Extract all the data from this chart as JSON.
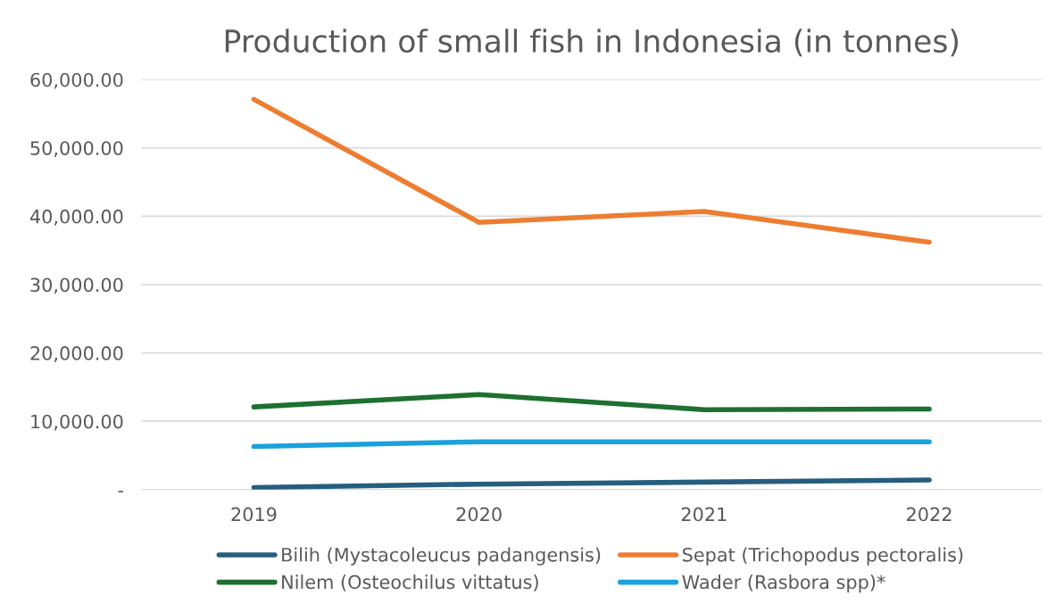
{
  "chart_data": {
    "type": "line",
    "title": "Production of small fish in Indonesia (in tonnes)",
    "categories": [
      "2019",
      "2020",
      "2021",
      "2022"
    ],
    "series": [
      {
        "name": "Bilih (Mystacoleucus padangensis)",
        "color": "#255e7e",
        "values": [
          300,
          800,
          1100,
          1400
        ]
      },
      {
        "name": "Sepat (Trichopodus pectoralis)",
        "color": "#ed7d31",
        "values": [
          57100,
          39100,
          40700,
          36200
        ]
      },
      {
        "name": "Nilem (Osteochilus vittatus)",
        "color": "#1e7030",
        "values": [
          12100,
          13900,
          11700,
          11800
        ]
      },
      {
        "name": "Wader (Rasbora spp)*",
        "color": "#1ba1dc",
        "values": [
          6300,
          7000,
          7000,
          7000
        ]
      }
    ],
    "ylim": [
      0,
      60000
    ],
    "yticks": [
      {
        "value": 0,
        "label": "-"
      },
      {
        "value": 10000,
        "label": "10,000.00"
      },
      {
        "value": 20000,
        "label": "20,000.00"
      },
      {
        "value": 30000,
        "label": "30,000.00"
      },
      {
        "value": 40000,
        "label": "40,000.00"
      },
      {
        "value": 50000,
        "label": "50,000.00"
      },
      {
        "value": 60000,
        "label": "60,000.00"
      }
    ],
    "grid": "y",
    "legend": "bottom",
    "marker": "none",
    "line_style": "solid"
  }
}
